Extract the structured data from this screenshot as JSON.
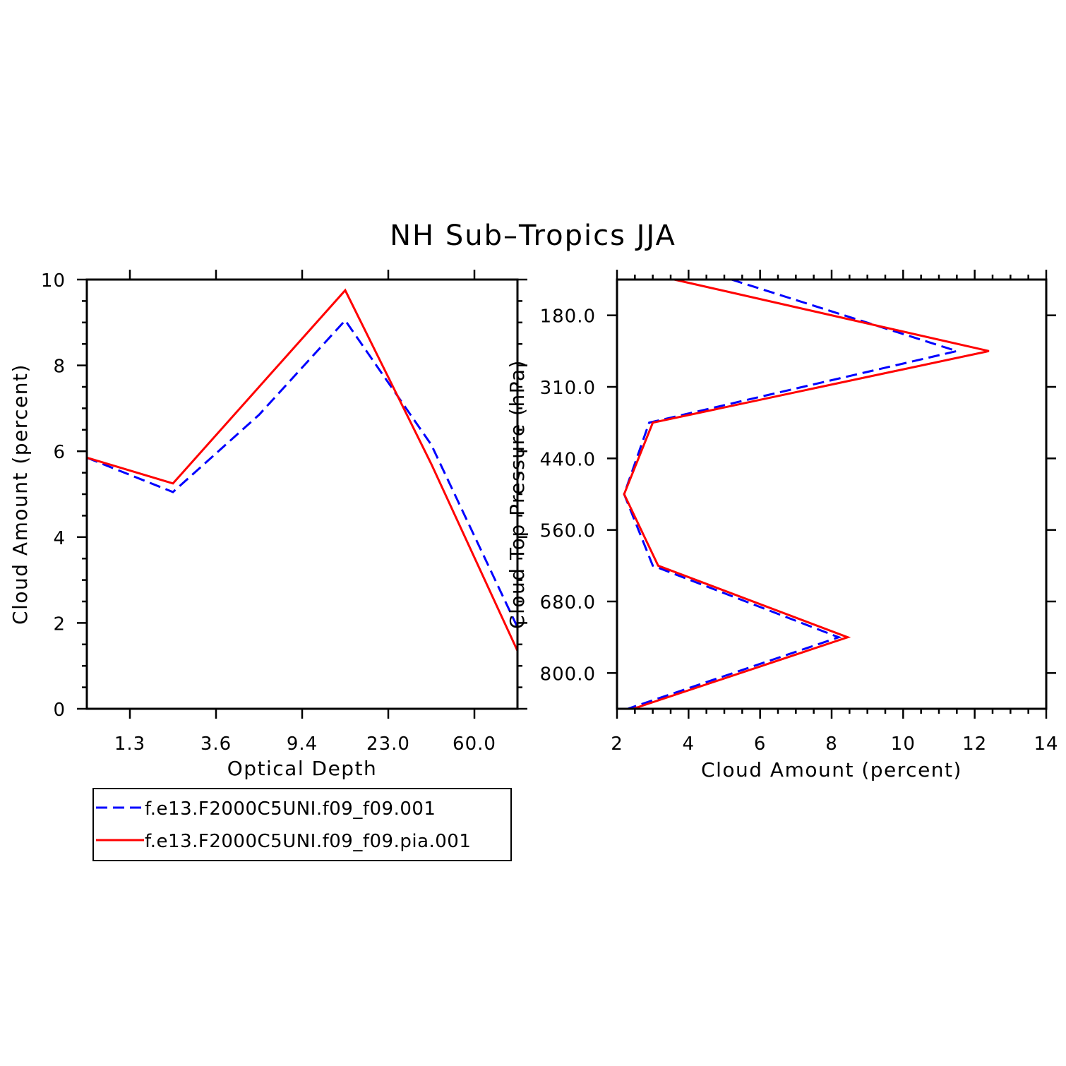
{
  "figure": {
    "title": "NH Sub–Tropics JJA",
    "legend": {
      "placement": "below-left",
      "entries": [
        {
          "label": "f.e13.F2000C5UNI.f09_f09.001",
          "color": "#0000ff",
          "dash": "dashed"
        },
        {
          "label": "f.e13.F2000C5UNI.f09_f09.pia.001",
          "color": "#ff0000",
          "dash": "solid"
        }
      ]
    }
  },
  "chart_data": [
    {
      "type": "line",
      "xlabel": "Optical Depth",
      "ylabel": "Cloud Amount (percent)",
      "x_tick_labels": [
        "1.3",
        "3.6",
        "9.4",
        "23.0",
        "60.0"
      ],
      "x_tick_bins": [
        1,
        3,
        5,
        7,
        9
      ],
      "x_range_bins": [
        0,
        10
      ],
      "x_bins": [
        0,
        2,
        4,
        6,
        8,
        10
      ],
      "ylim": [
        0,
        10
      ],
      "y_ticks": [
        "0",
        "2",
        "4",
        "6",
        "8",
        "10"
      ],
      "grid": false,
      "series": [
        {
          "name": "f.e13.F2000C5UNI.f09_f09.001",
          "color": "#0000ff",
          "dash": "dashed",
          "values": [
            5.85,
            5.05,
            6.85,
            9.05,
            6.15,
            1.9
          ]
        },
        {
          "name": "f.e13.F2000C5UNI.f09_f09.pia.001",
          "color": "#ff0000",
          "dash": "solid",
          "values": [
            5.85,
            5.25,
            7.5,
            9.75,
            5.7,
            1.35
          ]
        }
      ]
    },
    {
      "type": "line",
      "orientation": "horizontal",
      "xlabel": "Cloud Amount (percent)",
      "ylabel": "Cloud Top Pressure (hPa)",
      "xlim": [
        2,
        14
      ],
      "x_ticks": [
        "2",
        "4",
        "6",
        "8",
        "10",
        "12",
        "14"
      ],
      "y_tick_labels": [
        "180.0",
        "310.0",
        "440.0",
        "560.0",
        "680.0",
        "800.0"
      ],
      "y_tick_bins": [
        1,
        3,
        5,
        7,
        9,
        11
      ],
      "y_range_bins": [
        0,
        12
      ],
      "y_bins": [
        0,
        2,
        4,
        6,
        8,
        10,
        12
      ],
      "grid": false,
      "series": [
        {
          "name": "f.e13.F2000C5UNI.f09_f09.001",
          "color": "#0000ff",
          "dash": "dashed",
          "values": [
            5.2,
            11.5,
            2.9,
            2.2,
            3.0,
            8.2,
            2.3
          ]
        },
        {
          "name": "f.e13.F2000C5UNI.f09_f09.pia.001",
          "color": "#ff0000",
          "dash": "solid",
          "values": [
            3.6,
            12.4,
            3.0,
            2.2,
            3.15,
            8.45,
            2.45
          ]
        }
      ]
    }
  ]
}
